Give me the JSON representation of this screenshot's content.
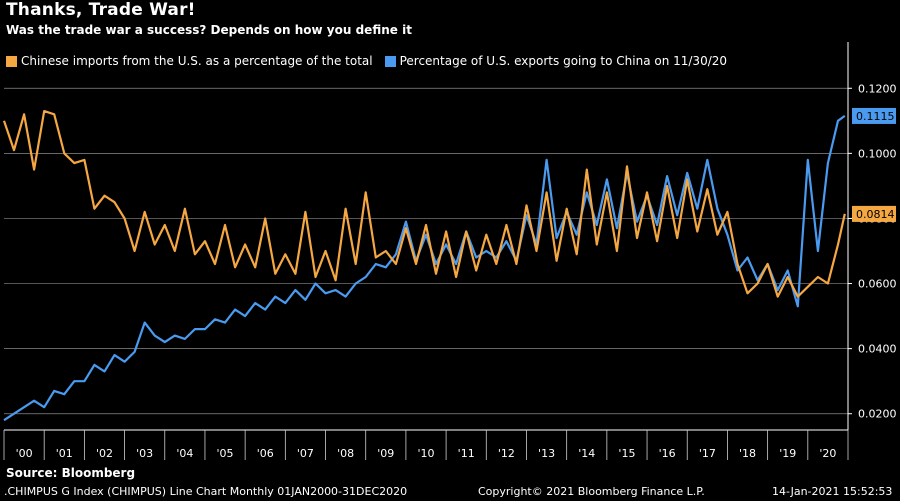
{
  "header": {
    "title": "Thanks, Trade War!",
    "subtitle": "Was the trade war a success? Depends on how you define it"
  },
  "legend": {
    "items": [
      {
        "label": "Chinese imports from the U.S. as a percentage of the total",
        "color": "#F5A742"
      },
      {
        "label": "Percentage of U.S. exports going to China on 11/30/20",
        "color": "#4A9BF0"
      }
    ]
  },
  "source": "Source: Bloomberg",
  "footer": {
    "left": ".CHIMPUS G Index (CHIMPUS) Line Chart  Monthly 01JAN2000-31DEC2020",
    "center": "Copyright© 2021 Bloomberg Finance L.P.",
    "right": "14-Jan-2021 15:52:53"
  },
  "chart_data": {
    "type": "line",
    "x_unit": "year",
    "xlim": [
      2000,
      2021
    ],
    "ylim": [
      0.015,
      0.125
    ],
    "yticks": [
      0.02,
      0.04,
      0.06,
      0.08,
      0.1,
      0.12
    ],
    "ytick_labels": [
      "0.0200",
      "0.0400",
      "0.0600",
      "0.0800",
      "0.1000",
      "0.1200"
    ],
    "xtick_labels": [
      "'00",
      "'01",
      "'02",
      "'03",
      "'04",
      "'05",
      "'06",
      "'07",
      "'08",
      "'09",
      "'10",
      "'11",
      "'12",
      "'13",
      "'14",
      "'15",
      "'16",
      "'17",
      "'18",
      "'19",
      "'20"
    ],
    "grid": "horizontal",
    "legend_position": "top",
    "last_value_labels": [
      "0.1115",
      "0.0814"
    ],
    "series": [
      {
        "name": "Chinese imports from the U.S. as a percentage of the total",
        "color": "#F5A742",
        "x": [
          2000.0,
          2000.25,
          2000.5,
          2000.75,
          2001.0,
          2001.25,
          2001.5,
          2001.75,
          2002.0,
          2002.25,
          2002.5,
          2002.75,
          2003.0,
          2003.25,
          2003.5,
          2003.75,
          2004.0,
          2004.25,
          2004.5,
          2004.75,
          2005.0,
          2005.25,
          2005.5,
          2005.75,
          2006.0,
          2006.25,
          2006.5,
          2006.75,
          2007.0,
          2007.25,
          2007.5,
          2007.75,
          2008.0,
          2008.25,
          2008.5,
          2008.75,
          2009.0,
          2009.25,
          2009.5,
          2009.75,
          2010.0,
          2010.25,
          2010.5,
          2010.75,
          2011.0,
          2011.25,
          2011.5,
          2011.75,
          2012.0,
          2012.25,
          2012.5,
          2012.75,
          2013.0,
          2013.25,
          2013.5,
          2013.75,
          2014.0,
          2014.25,
          2014.5,
          2014.75,
          2015.0,
          2015.25,
          2015.5,
          2015.75,
          2016.0,
          2016.25,
          2016.5,
          2016.75,
          2017.0,
          2017.25,
          2017.5,
          2017.75,
          2018.0,
          2018.25,
          2018.5,
          2018.75,
          2019.0,
          2019.25,
          2019.5,
          2019.75,
          2020.0,
          2020.25,
          2020.5,
          2020.75,
          2020.92
        ],
        "values": [
          0.11,
          0.101,
          0.112,
          0.095,
          0.113,
          0.112,
          0.1,
          0.097,
          0.098,
          0.083,
          0.087,
          0.085,
          0.08,
          0.07,
          0.082,
          0.072,
          0.078,
          0.07,
          0.083,
          0.069,
          0.073,
          0.066,
          0.078,
          0.065,
          0.072,
          0.065,
          0.08,
          0.063,
          0.069,
          0.063,
          0.082,
          0.062,
          0.07,
          0.061,
          0.083,
          0.066,
          0.088,
          0.068,
          0.07,
          0.066,
          0.077,
          0.066,
          0.078,
          0.063,
          0.076,
          0.062,
          0.076,
          0.064,
          0.075,
          0.066,
          0.078,
          0.066,
          0.084,
          0.07,
          0.088,
          0.067,
          0.083,
          0.069,
          0.095,
          0.072,
          0.088,
          0.07,
          0.096,
          0.074,
          0.088,
          0.073,
          0.09,
          0.074,
          0.092,
          0.076,
          0.089,
          0.075,
          0.082,
          0.066,
          0.057,
          0.06,
          0.066,
          0.056,
          0.062,
          0.056,
          0.059,
          0.062,
          0.06,
          0.072,
          0.0814
        ]
      },
      {
        "name": "Percentage of U.S. exports going to China on 11/30/20",
        "color": "#4A9BF0",
        "x": [
          2000.0,
          2000.25,
          2000.5,
          2000.75,
          2001.0,
          2001.25,
          2001.5,
          2001.75,
          2002.0,
          2002.25,
          2002.5,
          2002.75,
          2003.0,
          2003.25,
          2003.5,
          2003.75,
          2004.0,
          2004.25,
          2004.5,
          2004.75,
          2005.0,
          2005.25,
          2005.5,
          2005.75,
          2006.0,
          2006.25,
          2006.5,
          2006.75,
          2007.0,
          2007.25,
          2007.5,
          2007.75,
          2008.0,
          2008.25,
          2008.5,
          2008.75,
          2009.0,
          2009.25,
          2009.5,
          2009.75,
          2010.0,
          2010.25,
          2010.5,
          2010.75,
          2011.0,
          2011.25,
          2011.5,
          2011.75,
          2012.0,
          2012.25,
          2012.5,
          2012.75,
          2013.0,
          2013.25,
          2013.5,
          2013.75,
          2014.0,
          2014.25,
          2014.5,
          2014.75,
          2015.0,
          2015.25,
          2015.5,
          2015.75,
          2016.0,
          2016.25,
          2016.5,
          2016.75,
          2017.0,
          2017.25,
          2017.5,
          2017.75,
          2018.0,
          2018.25,
          2018.5,
          2018.75,
          2019.0,
          2019.25,
          2019.5,
          2019.75,
          2020.0,
          2020.25,
          2020.5,
          2020.75,
          2020.92
        ],
        "values": [
          0.018,
          0.02,
          0.022,
          0.024,
          0.022,
          0.027,
          0.026,
          0.03,
          0.03,
          0.035,
          0.033,
          0.038,
          0.036,
          0.039,
          0.048,
          0.044,
          0.042,
          0.044,
          0.043,
          0.046,
          0.046,
          0.049,
          0.048,
          0.052,
          0.05,
          0.054,
          0.052,
          0.056,
          0.054,
          0.058,
          0.055,
          0.06,
          0.057,
          0.058,
          0.056,
          0.06,
          0.062,
          0.066,
          0.065,
          0.069,
          0.079,
          0.067,
          0.075,
          0.066,
          0.072,
          0.066,
          0.076,
          0.068,
          0.07,
          0.068,
          0.073,
          0.067,
          0.081,
          0.072,
          0.098,
          0.074,
          0.082,
          0.075,
          0.088,
          0.078,
          0.092,
          0.077,
          0.094,
          0.079,
          0.087,
          0.078,
          0.093,
          0.081,
          0.094,
          0.083,
          0.098,
          0.083,
          0.075,
          0.064,
          0.068,
          0.061,
          0.066,
          0.058,
          0.064,
          0.053,
          0.098,
          0.07,
          0.097,
          0.11,
          0.1115
        ]
      }
    ]
  }
}
